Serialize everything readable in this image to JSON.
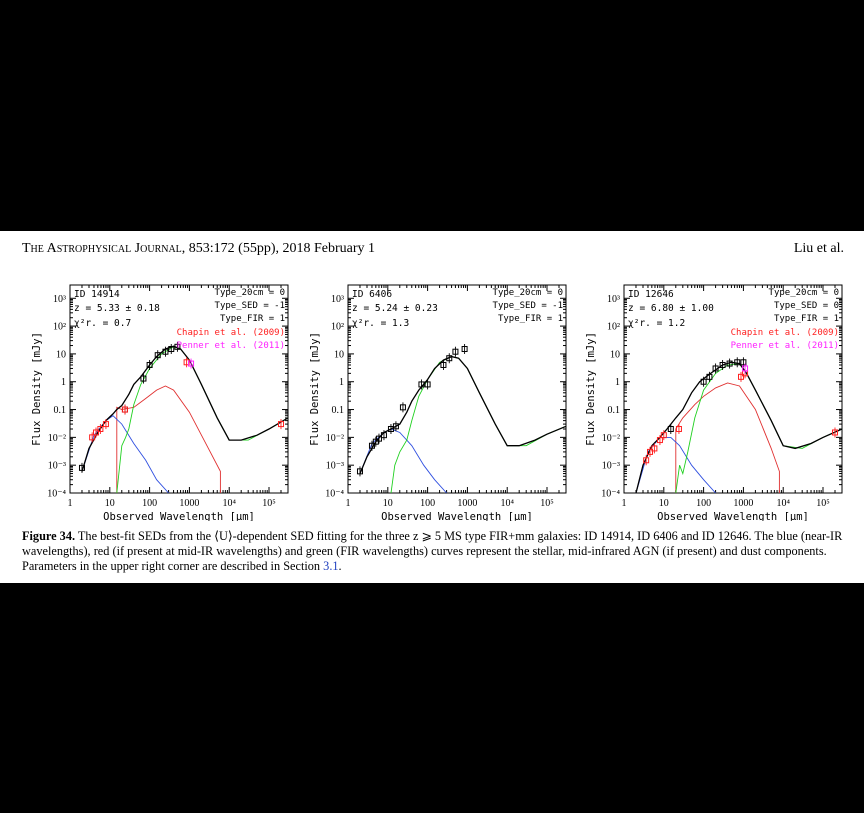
{
  "header": {
    "journal": "The Astrophysical Journal",
    "citation": ", 853:172 (55pp), 2018 February 1",
    "authors": "Liu et al."
  },
  "caption": {
    "label": "Figure 34.",
    "text_1": " The best-fit SEDs from the ⟨U⟩-dependent SED fitting for the three z ⩾ 5 MS type FIR+mm galaxies: ID 14914, ID 6406 and ID 12646. The blue (near-IR wavelengths), red (if present at mid-IR wavelengths) and green (FIR wavelengths) curves represent the stellar, mid-infrared AGN (if present) and dust components. Parameters in the upper right corner are described in Section ",
    "link": "3.1",
    "text_2": "."
  },
  "colors": {
    "stellar": "#3050e0",
    "agn": "#e03030",
    "dust": "#20d020",
    "total": "#000000",
    "chapin": "#ff2020",
    "penner": "#ff20ff"
  },
  "chart_data": [
    {
      "type": "line",
      "id_label": "ID 14914",
      "z_label": "z = 5.33 ± 0.18",
      "chi_label": "χ²r. = 0.7",
      "params": [
        "Type_20cm = 0",
        "Type_SED = -1",
        "Type_FIR = 1"
      ],
      "legend": [
        "Chapin et al. (2009)",
        "Penner et al. (2011)"
      ],
      "xlabel": "Observed Wavelength [μm]",
      "ylabel": "Flux Density [mJy]",
      "xscale": "log",
      "yscale": "log",
      "xlim": [
        1,
        300000
      ],
      "ylim": [
        0.0001,
        3000
      ],
      "xticks": [
        "1",
        "10",
        "100",
        "1000",
        "10⁴",
        "10⁵"
      ],
      "yticks": [
        "10⁻⁴",
        "10⁻³",
        "10⁻²",
        "0.1",
        "1",
        "10",
        "10²",
        "10³"
      ],
      "series": [
        {
          "component": "total",
          "x": [
            2,
            3,
            5,
            8,
            12,
            15,
            20,
            30,
            40,
            60,
            100,
            150,
            250,
            400,
            600,
            1000,
            2000,
            5000,
            10000,
            20000,
            50000,
            100000,
            300000
          ],
          "y": [
            0.0006,
            0.004,
            0.015,
            0.04,
            0.07,
            0.1,
            0.14,
            0.35,
            0.8,
            1.5,
            4,
            8,
            15,
            19,
            15,
            6,
            0.8,
            0.05,
            0.008,
            0.008,
            0.012,
            0.02,
            0.05
          ]
        },
        {
          "component": "stellar",
          "x": [
            2,
            4,
            8,
            12,
            20,
            40,
            80,
            150,
            300
          ],
          "y": [
            0.0006,
            0.012,
            0.04,
            0.06,
            0.03,
            0.006,
            0.0015,
            0.0003,
            0.0001
          ]
        },
        {
          "component": "agn",
          "x": [
            15,
            15,
            20,
            40,
            80,
            150,
            250,
            400,
            1000,
            3000,
            6000,
            6000
          ],
          "y": [
            0.0001,
            0.12,
            0.1,
            0.12,
            0.25,
            0.5,
            0.7,
            0.5,
            0.08,
            0.004,
            0.0006,
            0.0001
          ]
        },
        {
          "component": "dust",
          "x": [
            15,
            20,
            25,
            30,
            40,
            60,
            100,
            200,
            400,
            600,
            1000,
            2000,
            5000,
            10000,
            30000,
            100000,
            300000
          ],
          "y": [
            0.0001,
            0.005,
            0.01,
            0.02,
            0.15,
            0.8,
            3,
            10,
            18,
            15,
            6,
            0.8,
            0.05,
            0.008,
            0.008,
            0.02,
            0.05
          ]
        }
      ],
      "points_black": {
        "x": [
          2,
          24,
          70,
          100,
          160,
          250,
          350,
          500
        ],
        "y": [
          0.0008,
          0.1,
          1.3,
          4,
          9,
          12,
          15,
          18
        ]
      },
      "points_red": {
        "x": [
          3.6,
          4.5,
          5.8,
          8,
          24,
          850,
          200000
        ],
        "y": [
          0.01,
          0.015,
          0.02,
          0.03,
          0.1,
          5,
          0.03
        ]
      },
      "points_magenta": {
        "x": [
          1100
        ],
        "y": [
          4.5
        ]
      }
    },
    {
      "type": "line",
      "id_label": "ID 6406",
      "z_label": "z = 5.24 ± 0.23",
      "chi_label": "χ²r. = 1.3",
      "params": [
        "Type_20cm = 0",
        "Type_SED = -1",
        "Type_FIR = 1"
      ],
      "legend": [],
      "xlabel": "Observed Wavelength [μm]",
      "ylabel": "Flux Density [mJy]",
      "xscale": "log",
      "yscale": "log",
      "xlim": [
        1,
        300000
      ],
      "ylim": [
        0.0001,
        3000
      ],
      "xticks": [
        "1",
        "10",
        "100",
        "1000",
        "10⁴",
        "10⁵"
      ],
      "yticks": [
        "10⁻⁴",
        "10⁻³",
        "10⁻²",
        "0.1",
        "1",
        "10",
        "10²",
        "10³"
      ],
      "series": [
        {
          "component": "total",
          "x": [
            2,
            3,
            5,
            8,
            12,
            20,
            30,
            40,
            60,
            100,
            150,
            250,
            400,
            600,
            1000,
            2000,
            5000,
            10000,
            20000,
            50000,
            100000,
            300000
          ],
          "y": [
            0.0005,
            0.002,
            0.007,
            0.015,
            0.02,
            0.03,
            0.08,
            0.2,
            0.5,
            1.2,
            3,
            6,
            8,
            7,
            3,
            0.4,
            0.03,
            0.005,
            0.005,
            0.008,
            0.013,
            0.025
          ]
        },
        {
          "component": "stellar",
          "x": [
            2,
            4,
            8,
            12,
            20,
            40,
            80,
            150,
            300
          ],
          "y": [
            0.0005,
            0.006,
            0.015,
            0.02,
            0.015,
            0.005,
            0.001,
            0.0003,
            0.0001
          ]
        },
        {
          "component": "dust",
          "x": [
            12,
            15,
            20,
            30,
            40,
            60,
            100,
            200,
            400,
            600,
            1000,
            2000,
            5000,
            10000,
            30000,
            100000,
            300000
          ],
          "y": [
            0.0001,
            0.001,
            0.003,
            0.008,
            0.04,
            0.3,
            1.2,
            5,
            8,
            7,
            3,
            0.4,
            0.03,
            0.005,
            0.005,
            0.013,
            0.025
          ]
        }
      ],
      "points_black": {
        "x": [
          2,
          4,
          5,
          6,
          8,
          12,
          16,
          24,
          70,
          100,
          250,
          350,
          500,
          850
        ],
        "y": [
          0.0006,
          0.005,
          0.007,
          0.009,
          0.012,
          0.02,
          0.025,
          0.12,
          0.8,
          0.8,
          4,
          7,
          12,
          15
        ]
      },
      "points_red": {
        "x": [],
        "y": []
      },
      "points_magenta": {
        "x": [],
        "y": []
      }
    },
    {
      "type": "line",
      "id_label": "ID 12646",
      "z_label": "z = 6.80 ± 1.00",
      "chi_label": "χ²r. = 1.2",
      "params": [
        "Type_20cm = 0",
        "Type_SED = 0",
        "Type_FIR = 1"
      ],
      "legend": [
        "Chapin et al. (2009)",
        "Penner et al. (2011)"
      ],
      "xlabel": "Observed Wavelength [μm]",
      "ylabel": "Flux Density [mJy]",
      "xscale": "log",
      "yscale": "log",
      "xlim": [
        1,
        300000
      ],
      "ylim": [
        0.0001,
        3000
      ],
      "xticks": [
        "1",
        "10",
        "100",
        "1000",
        "10⁴",
        "10⁵"
      ],
      "yticks": [
        "10⁻⁴",
        "10⁻³",
        "10⁻²",
        "0.1",
        "1",
        "10",
        "10²",
        "10³"
      ],
      "series": [
        {
          "component": "total",
          "x": [
            2,
            3,
            5,
            8,
            12,
            20,
            30,
            50,
            80,
            150,
            300,
            500,
            800,
            1200,
            2000,
            5000,
            10000,
            20000,
            50000,
            100000,
            300000
          ],
          "y": [
            0.0001,
            0.001,
            0.005,
            0.01,
            0.02,
            0.05,
            0.1,
            0.4,
            1,
            2,
            4,
            5,
            4.5,
            2,
            0.5,
            0.04,
            0.005,
            0.004,
            0.006,
            0.01,
            0.02
          ]
        },
        {
          "component": "stellar",
          "x": [
            2,
            4,
            8,
            15,
            25,
            50,
            100,
            200
          ],
          "y": [
            0.0001,
            0.003,
            0.01,
            0.01,
            0.005,
            0.001,
            0.0003,
            0.0001
          ]
        },
        {
          "component": "agn",
          "x": [
            20,
            20,
            30,
            60,
            100,
            200,
            400,
            800,
            2000,
            5000,
            8000,
            8000
          ],
          "y": [
            0.0001,
            0.02,
            0.05,
            0.15,
            0.3,
            0.6,
            0.9,
            0.7,
            0.1,
            0.004,
            0.0006,
            0.0001
          ]
        },
        {
          "component": "dust",
          "x": [
            20,
            25,
            30,
            40,
            60,
            100,
            200,
            400,
            800,
            1200,
            2000,
            5000,
            10000,
            30000,
            100000,
            300000
          ],
          "y": [
            0.0001,
            0.001,
            0.0005,
            0.003,
            0.05,
            0.5,
            2,
            4,
            4.5,
            2,
            0.5,
            0.04,
            0.005,
            0.004,
            0.01,
            0.02
          ]
        }
      ],
      "points_black": {
        "x": [
          15,
          100,
          140,
          200,
          300,
          450,
          700,
          1000
        ],
        "y": [
          0.02,
          1,
          1.5,
          3,
          4,
          4.5,
          5,
          5
        ]
      },
      "points_red": {
        "x": [
          3.6,
          4.5,
          5.8,
          8,
          10,
          24,
          870,
          1100,
          200000
        ],
        "y": [
          0.0015,
          0.003,
          0.004,
          0.008,
          0.012,
          0.02,
          1.5,
          2,
          0.015
        ]
      },
      "points_magenta": {
        "x": [
          1100
        ],
        "y": [
          3
        ]
      }
    }
  ]
}
